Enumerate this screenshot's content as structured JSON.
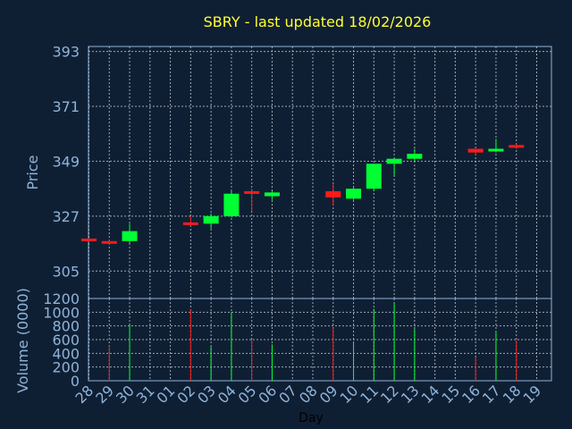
{
  "colors": {
    "up": "#00ff33",
    "down": "#ff1a1a",
    "background": "#0f1f33",
    "axis_text": "#8fb3d9",
    "title": "#ffff33"
  },
  "chart_data": [
    {
      "type": "candlestick",
      "title": "SBRY - last updated 18/02/2026",
      "ylabel": "Price",
      "ylim": [
        294,
        395
      ],
      "yticks": [
        393,
        371,
        349,
        327,
        305
      ],
      "grid": true,
      "categories": [
        "28",
        "29",
        "30",
        "31",
        "01",
        "02",
        "03",
        "04",
        "05",
        "06",
        "07",
        "08",
        "09",
        "10",
        "11",
        "12",
        "13",
        "14",
        "15",
        "16",
        "17",
        "18",
        "19"
      ],
      "candles": [
        {
          "x": "28",
          "open": 318,
          "high": 318,
          "low": 317,
          "close": 317.5
        },
        {
          "x": "29",
          "open": 317,
          "high": 317.5,
          "low": 315.5,
          "close": 316.5
        },
        {
          "x": "30",
          "open": 317,
          "high": 324,
          "low": 316,
          "close": 321
        },
        {
          "x": "02",
          "open": 324.5,
          "high": 327,
          "low": 323,
          "close": 323.5
        },
        {
          "x": "03",
          "open": 324,
          "high": 328,
          "low": 322,
          "close": 327
        },
        {
          "x": "04",
          "open": 327,
          "high": 337,
          "low": 326.5,
          "close": 336
        },
        {
          "x": "05",
          "open": 337,
          "high": 338,
          "low": 329,
          "close": 336
        },
        {
          "x": "06",
          "open": 335,
          "high": 337,
          "low": 333.5,
          "close": 336.5
        },
        {
          "x": "09",
          "open": 337,
          "high": 340,
          "low": 331.5,
          "close": 334.5
        },
        {
          "x": "10",
          "open": 334,
          "high": 339,
          "low": 333.5,
          "close": 338
        },
        {
          "x": "11",
          "open": 338,
          "high": 348,
          "low": 337,
          "close": 348
        },
        {
          "x": "12",
          "open": 348,
          "high": 350,
          "low": 343,
          "close": 350
        },
        {
          "x": "13",
          "open": 350,
          "high": 354,
          "low": 349,
          "close": 352
        },
        {
          "x": "16",
          "open": 354,
          "high": 354,
          "low": 351.5,
          "close": 352.5
        },
        {
          "x": "17",
          "open": 353,
          "high": 358,
          "low": 352.5,
          "close": 354
        },
        {
          "x": "18",
          "open": 355.5,
          "high": 356,
          "low": 354,
          "close": 354.5
        }
      ]
    },
    {
      "type": "bar",
      "ylabel": "Volume (0000)",
      "xlabel": "Day",
      "ylim": [
        0,
        1200
      ],
      "yticks": [
        1200,
        1000,
        800,
        600,
        400,
        200,
        0
      ],
      "grid": true,
      "categories": [
        "28",
        "29",
        "30",
        "31",
        "01",
        "02",
        "03",
        "04",
        "05",
        "06",
        "07",
        "08",
        "09",
        "10",
        "11",
        "12",
        "13",
        "14",
        "15",
        "16",
        "17",
        "18",
        "19"
      ],
      "bars": [
        {
          "x": "28",
          "value": 0,
          "direction": "down"
        },
        {
          "x": "29",
          "value": 520,
          "direction": "down"
        },
        {
          "x": "30",
          "value": 830,
          "direction": "up"
        },
        {
          "x": "02",
          "value": 1040,
          "direction": "down"
        },
        {
          "x": "03",
          "value": 500,
          "direction": "up"
        },
        {
          "x": "04",
          "value": 1000,
          "direction": "up"
        },
        {
          "x": "05",
          "value": 600,
          "direction": "down"
        },
        {
          "x": "06",
          "value": 530,
          "direction": "up"
        },
        {
          "x": "09",
          "value": 770,
          "direction": "down"
        },
        {
          "x": "10",
          "value": 560,
          "direction": "up"
        },
        {
          "x": "11",
          "value": 1050,
          "direction": "up"
        },
        {
          "x": "12",
          "value": 1140,
          "direction": "up"
        },
        {
          "x": "13",
          "value": 760,
          "direction": "up"
        },
        {
          "x": "16",
          "value": 340,
          "direction": "down"
        },
        {
          "x": "17",
          "value": 720,
          "direction": "up"
        },
        {
          "x": "18",
          "value": 590,
          "direction": "down"
        }
      ]
    }
  ]
}
